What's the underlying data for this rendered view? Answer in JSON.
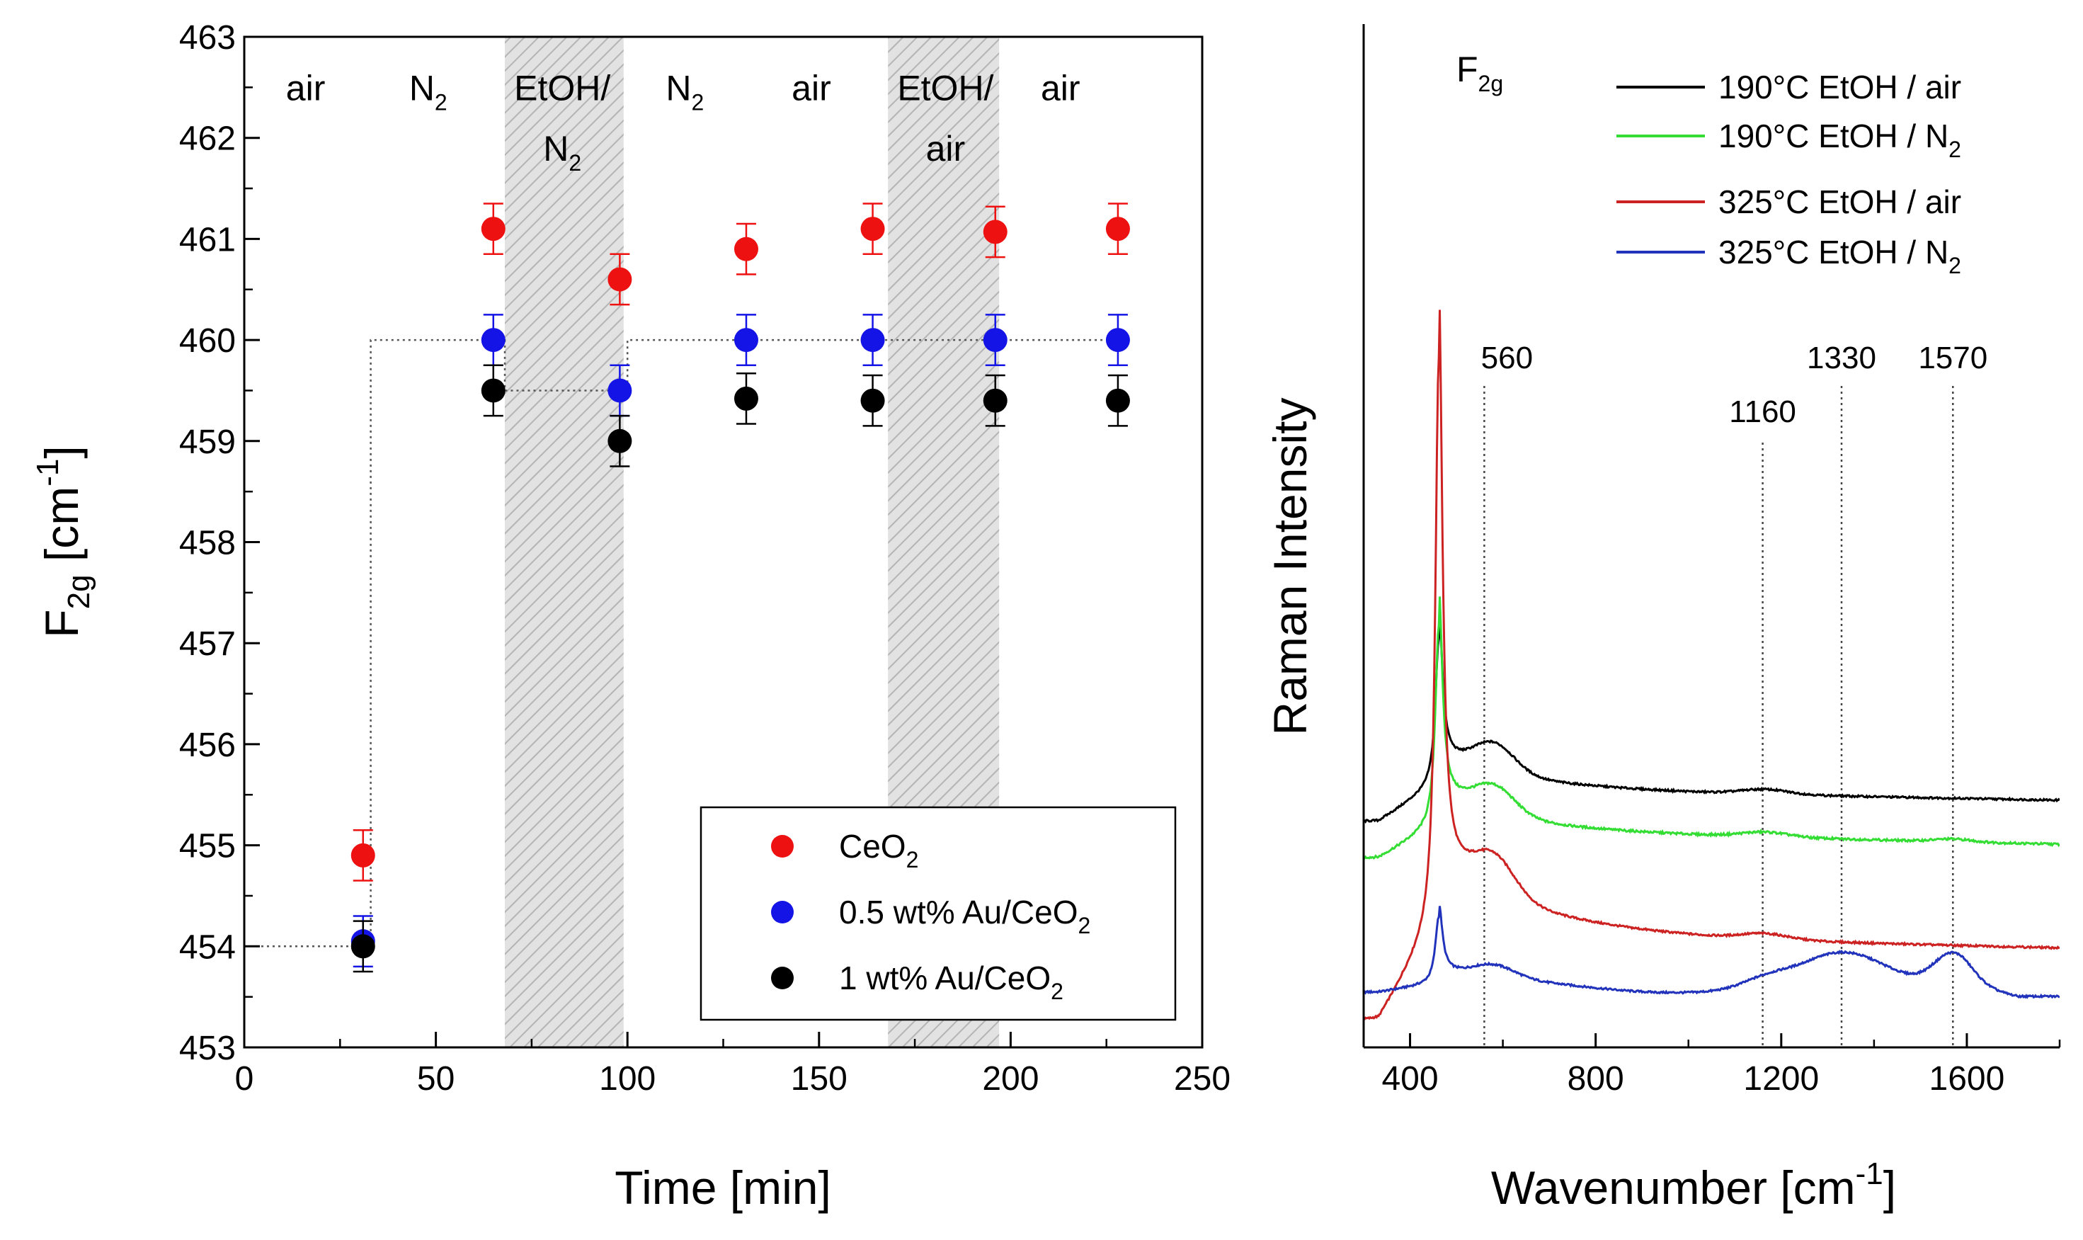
{
  "colors": {
    "ceo2": "#ee1111",
    "au05": "#1414e6",
    "au1": "#000000",
    "air190": "#000000",
    "n2190": "#33dd33",
    "air325": "#cc2222",
    "n2325": "#2233bb",
    "shade": "#c8c8c8"
  },
  "chart_data": [
    {
      "type": "scatter",
      "title": "",
      "xlabel": "Time [min]",
      "ylabel": {
        "main": "F",
        "sub": "2g",
        "unit_pre": " [cm",
        "unit_sup": "-1",
        "unit_post": "]"
      },
      "xlim": [
        0,
        250
      ],
      "ylim": [
        453,
        463
      ],
      "xticks": [
        "0",
        "50",
        "100",
        "150",
        "200",
        "250"
      ],
      "yticks": [
        "453",
        "454",
        "455",
        "456",
        "457",
        "458",
        "459",
        "460",
        "461",
        "462",
        "463"
      ],
      "atmospheres": [
        {
          "label": "air",
          "x": 16,
          "y": 462.5
        },
        {
          "label": "N",
          "sub": "2",
          "x": 48,
          "y": 462.5
        },
        {
          "label": "EtOH/",
          "x": 83,
          "y": 462.5
        },
        {
          "label": "N",
          "sub": "2",
          "x": 83,
          "y": 461.9
        },
        {
          "label": "N",
          "sub": "2",
          "x": 115,
          "y": 462.5
        },
        {
          "label": "air",
          "x": 148,
          "y": 462.5
        },
        {
          "label": "EtOH/",
          "x": 183,
          "y": 462.5
        },
        {
          "label": "air",
          "x": 183,
          "y": 461.9
        },
        {
          "label": "air",
          "x": 213,
          "y": 462.5
        }
      ],
      "shaded_regions": [
        [
          68,
          99
        ],
        [
          168,
          197
        ]
      ],
      "reference_steps": [
        [
          0,
          454
        ],
        [
          33,
          454
        ],
        [
          33,
          460
        ],
        [
          68,
          460
        ],
        [
          68,
          459.5
        ],
        [
          100,
          459.5
        ],
        [
          100,
          460
        ],
        [
          228,
          460
        ]
      ],
      "series": [
        {
          "name": "CeO",
          "sub": "2",
          "color_key": "ceo2",
          "x": [
            31,
            65,
            98,
            131,
            164,
            196,
            228
          ],
          "y": [
            454.9,
            461.1,
            460.6,
            460.9,
            461.1,
            461.07,
            461.1
          ],
          "err": [
            0.25,
            0.25,
            0.25,
            0.25,
            0.25,
            0.25,
            0.25
          ]
        },
        {
          "name": "0.5 wt% Au/CeO",
          "sub": "2",
          "color_key": "au05",
          "x": [
            31,
            65,
            98,
            131,
            164,
            196,
            228
          ],
          "y": [
            454.05,
            460.0,
            459.5,
            460.0,
            460.0,
            460.0,
            460.0
          ],
          "err": [
            0.25,
            0.25,
            0.25,
            0.25,
            0.25,
            0.25,
            0.25
          ]
        },
        {
          "name": "1 wt% Au/CeO",
          "sub": "2",
          "color_key": "au1",
          "x": [
            31,
            65,
            98,
            131,
            164,
            196,
            228
          ],
          "y": [
            454.0,
            459.5,
            459.0,
            459.42,
            459.4,
            459.4,
            459.4
          ],
          "err": [
            0.25,
            0.25,
            0.25,
            0.25,
            0.25,
            0.25,
            0.25
          ]
        }
      ]
    },
    {
      "type": "line",
      "title": "",
      "xlabel": {
        "main": "Wavenumber [cm",
        "sup": "-1",
        "post": "]"
      },
      "ylabel": "Raman Intensity",
      "xlim": [
        300,
        1800
      ],
      "xticks": [
        "400",
        "800",
        "1200",
        "1600"
      ],
      "peak_annotation": {
        "main": "F",
        "sub": "2g"
      },
      "peak_lines": [
        {
          "x": 560,
          "label": "560"
        },
        {
          "x": 1160,
          "label": "1160"
        },
        {
          "x": 1330,
          "label": "1330"
        },
        {
          "x": 1570,
          "label": "1570"
        }
      ],
      "series": [
        {
          "name": "190°C EtOH / air",
          "sub": "",
          "color_key": "air190",
          "baseline": 3.05,
          "peak_height": 2.2,
          "shoulder": 0.42,
          "tail": 0.5,
          "tail_decay": 200,
          "slope": 0.00012,
          "band1160": 0.07,
          "band1330": 0.0,
          "band1570": 0.0,
          "dip1000": 0.0,
          "pre_drop": 0.5,
          "noise": 0.014
        },
        {
          "name": "190°C EtOH / N",
          "sub": "2",
          "color_key": "n2190",
          "baseline": 2.45,
          "peak_height": 3.0,
          "shoulder": 0.4,
          "tail": 0.55,
          "tail_decay": 170,
          "slope": 0.00016,
          "band1160": 0.07,
          "band1330": 0.0,
          "band1570": 0.04,
          "dip1000": 0.0,
          "pre_drop": 0.45,
          "noise": 0.016
        },
        {
          "name": "325°C EtOH / air",
          "sub": "",
          "color_key": "air325",
          "baseline": 0.9,
          "peak_height": 8.5,
          "shoulder": 0.55,
          "tail": 1.1,
          "tail_decay": 220,
          "slope": 0.00014,
          "band1160": 0.08,
          "band1330": 0.0,
          "band1570": 0.0,
          "dip1000": 0.0,
          "pre_drop": 1.3,
          "noise": 0.014
        },
        {
          "name": "325°C EtOH / N",
          "sub": "2",
          "color_key": "n2325",
          "baseline": 0.2,
          "peak_height": 1.0,
          "shoulder": 0.18,
          "tail": 0.2,
          "tail_decay": 250,
          "slope": 0.0,
          "band1160": 0.12,
          "band1330": 0.48,
          "band1570": 0.45,
          "dip1000": 0.15,
          "pre_drop": 0.12,
          "noise": 0.014
        }
      ]
    }
  ]
}
